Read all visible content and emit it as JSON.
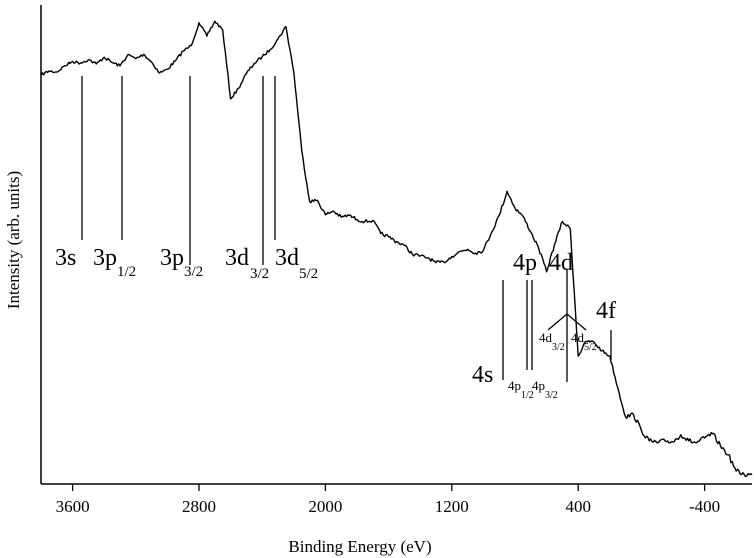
{
  "chart_data": {
    "type": "line",
    "xlabel": "Binding Energy (eV)",
    "ylabel": "Intensity (arb. units)",
    "x_reversed": true,
    "xlim": [
      3800,
      -700
    ],
    "ylim": [
      0,
      100
    ],
    "y_ticks_shown": false,
    "grid": false,
    "x_ticks": [
      3600,
      2800,
      2000,
      1200,
      400,
      -400
    ],
    "x_tick_labels": [
      "3600",
      "2800",
      "2000",
      "1200",
      "400",
      "-400"
    ],
    "series": [
      {
        "x": [
          3800,
          3750,
          3700,
          3650,
          3600,
          3550,
          3500,
          3450,
          3400,
          3350,
          3300,
          3250,
          3200,
          3150,
          3100,
          3050,
          3000,
          2950,
          2900,
          2850,
          2800,
          2750,
          2700,
          2650,
          2600,
          2550,
          2500,
          2450,
          2400,
          2350,
          2300,
          2250,
          2200,
          2150,
          2100,
          2050,
          2000,
          1950,
          1900,
          1850,
          1800,
          1750,
          1700,
          1650,
          1600,
          1550,
          1500,
          1450,
          1400,
          1350,
          1300,
          1250,
          1200,
          1150,
          1100,
          1050,
          1000,
          950,
          900,
          850,
          800,
          750,
          700,
          650,
          600,
          550,
          500,
          450,
          400,
          350,
          300,
          250,
          200,
          150,
          100,
          50,
          0,
          -50,
          -100,
          -150,
          -200,
          -250,
          -300,
          -350,
          -400,
          -450,
          -500,
          -550,
          -600,
          -650,
          -700
        ],
        "y": [
          85.4,
          86.2,
          86.0,
          87.3,
          88.2,
          87.9,
          88.6,
          87.7,
          89.1,
          88.0,
          87.3,
          89.6,
          88.8,
          89.7,
          88.1,
          85.8,
          86.6,
          88.3,
          90.4,
          91.5,
          96.3,
          93.5,
          96.6,
          94.8,
          80.4,
          82.6,
          85.7,
          87.8,
          89.2,
          90.7,
          92.9,
          95.5,
          86.0,
          69.7,
          59.0,
          59.2,
          56.2,
          57.0,
          55.7,
          56.1,
          55.2,
          54.8,
          55.0,
          52.3,
          51.6,
          50.6,
          49.8,
          48.0,
          47.6,
          47.2,
          46.2,
          46.3,
          47.5,
          48.5,
          49.0,
          48.2,
          48.8,
          52.4,
          56.1,
          61.1,
          57.6,
          55.9,
          52.6,
          49.2,
          44.3,
          50.0,
          54.8,
          53.3,
          26.7,
          29.8,
          29.6,
          27.8,
          26.7,
          20.1,
          14.0,
          14.5,
          11.2,
          9.0,
          8.6,
          9.0,
          8.8,
          10.3,
          9.0,
          8.6,
          9.6,
          10.5,
          8.0,
          6.1,
          2.7,
          2.0,
          1.9
        ]
      }
    ],
    "annotations": [
      {
        "main": "3s",
        "sub": "",
        "x": 3460
      },
      {
        "main": "3p",
        "sub": "1/2",
        "x": 3240
      },
      {
        "main": "3p",
        "sub": "3/2",
        "x": 2790
      },
      {
        "main": "3d",
        "sub": "3/2",
        "x": 2260
      },
      {
        "main": "3d",
        "sub": "5/2",
        "x": 2200
      },
      {
        "main": "4s",
        "sub": "",
        "x": 760
      },
      {
        "main": "4p",
        "sub": "",
        "x": 630
      },
      {
        "main": "4p",
        "sub": "1/2",
        "x": 630
      },
      {
        "main": "4p",
        "sub": "3/2",
        "x": 610
      },
      {
        "main": "4d",
        "sub": "",
        "x": 400
      },
      {
        "main": "4d",
        "sub": "3/2",
        "x": 400
      },
      {
        "main": "4d",
        "sub": "5/2",
        "x": 400
      },
      {
        "main": "4f",
        "sub": "",
        "x": 180
      }
    ]
  }
}
